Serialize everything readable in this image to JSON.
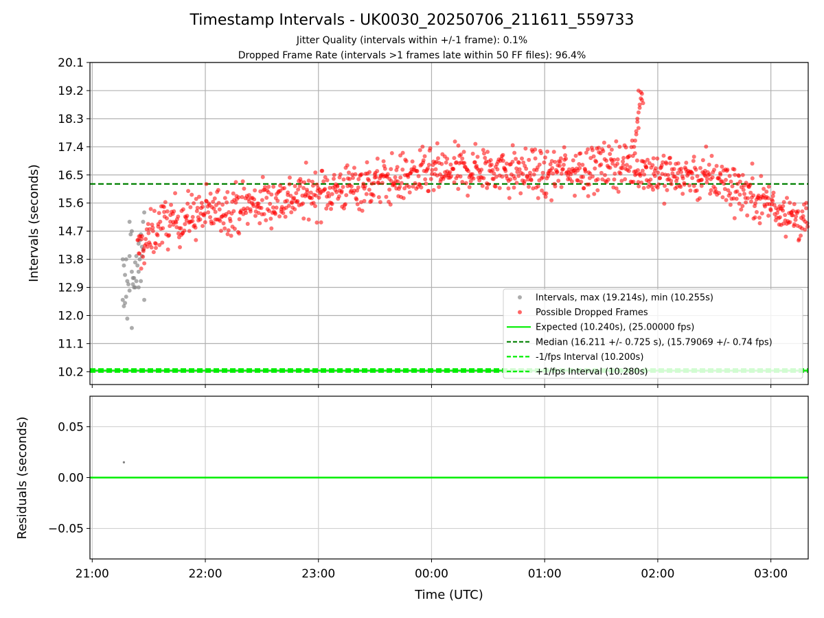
{
  "chart_data": [
    {
      "type": "scatter",
      "title": "Timestamp Intervals - UK0030_20250706_211611_559733",
      "subtitle_lines": [
        "Jitter Quality (intervals within +/-1 frame): 0.1%",
        "Dropped Frame Rate (intervals >1 frames late within 50 FF files): 96.4%"
      ],
      "xlabel": "",
      "ylabel": "Intervals (seconds)",
      "x_range_hours": [
        20.98,
        27.33
      ],
      "ylim": [
        9.79,
        20.1
      ],
      "yticks": [
        10.2,
        11.1,
        12.0,
        12.9,
        13.8,
        14.7,
        15.6,
        16.5,
        17.4,
        18.3,
        19.2,
        20.1
      ],
      "ytick_labels": [
        "10.2",
        "11.1",
        "12.0",
        "12.9",
        "13.8",
        "14.7",
        "15.6",
        "16.5",
        "17.4",
        "18.3",
        "19.2",
        "20.1"
      ],
      "xticks_hours": [
        21,
        22,
        23,
        24,
        25,
        26,
        27
      ],
      "grid": true,
      "legend_position": "lower-right",
      "expected": 10.24,
      "median": 16.211,
      "minus_interval": 10.2,
      "plus_interval": 10.28,
      "colors": {
        "intervals": "#808080",
        "dropped": "#ff0000",
        "expected": "#00ee00",
        "median": "#008000",
        "bounds": "#00ee00"
      },
      "legend": [
        {
          "key": "intervals",
          "label": "Intervals, max (19.214s), min (10.255s)"
        },
        {
          "key": "dropped",
          "label": "Possible Dropped Frames"
        },
        {
          "key": "expected",
          "label": "Expected (10.240s), (25.00000 fps)"
        },
        {
          "key": "median",
          "label": "Median (16.211 +/- 0.725 s), (15.79069 +/- 0.74 fps)"
        },
        {
          "key": "minus",
          "label": "-1/fps Interval (10.200s)"
        },
        {
          "key": "plus",
          "label": "+1/fps Interval (10.280s)"
        }
      ],
      "gray_points": [
        [
          21.27,
          13.8
        ],
        [
          21.28,
          13.6
        ],
        [
          21.29,
          13.3
        ],
        [
          21.27,
          12.5
        ],
        [
          21.28,
          12.3
        ],
        [
          21.3,
          12.6
        ],
        [
          21.31,
          13.1
        ],
        [
          21.32,
          13.0
        ],
        [
          21.33,
          12.8
        ],
        [
          21.3,
          13.8
        ],
        [
          21.33,
          13.9
        ],
        [
          21.35,
          13.4
        ],
        [
          21.36,
          13.2
        ],
        [
          21.37,
          12.9
        ],
        [
          21.38,
          13.7
        ],
        [
          21.34,
          14.6
        ],
        [
          21.35,
          14.7
        ],
        [
          21.33,
          15.0
        ],
        [
          21.39,
          13.9
        ],
        [
          21.4,
          13.6
        ],
        [
          21.41,
          14.3
        ],
        [
          21.42,
          14.4
        ],
        [
          21.43,
          14.6
        ],
        [
          21.44,
          14.2
        ],
        [
          21.45,
          15.0
        ],
        [
          21.46,
          15.3
        ],
        [
          21.42,
          13.8
        ],
        [
          21.44,
          13.9
        ],
        [
          21.38,
          12.9
        ],
        [
          21.36,
          13.0
        ],
        [
          21.31,
          11.9
        ],
        [
          21.41,
          12.9
        ],
        [
          21.43,
          13.1
        ],
        [
          21.46,
          12.5
        ],
        [
          21.41,
          13.4
        ],
        [
          21.29,
          12.4
        ],
        [
          21.35,
          11.6
        ],
        [
          21.39,
          13.1
        ],
        [
          21.45,
          14.1
        ],
        [
          21.37,
          13.2
        ]
      ],
      "dropped_series": {
        "description": "Possible dropped frames: interval values trend rising from ~14.0s near 21:30 UTC to ~17s near 01:30 UTC, spike to 19.2s near 01:50, then fall to ~14.5s near 03:20",
        "x_start_hours": 21.4,
        "x_end_hours": 27.33,
        "trend_hours": [
          21.4,
          21.6,
          22.0,
          22.5,
          23.0,
          23.5,
          24.0,
          24.5,
          25.0,
          25.5,
          25.75,
          26.0,
          26.5,
          27.0,
          27.33
        ],
        "trend_values": [
          14.0,
          14.9,
          15.3,
          15.6,
          15.95,
          16.25,
          16.55,
          16.7,
          16.5,
          16.9,
          16.85,
          16.55,
          16.4,
          15.6,
          14.9
        ],
        "spread": 0.55,
        "count": 1150,
        "spike_points": [
          [
            25.8,
            17.6
          ],
          [
            25.81,
            17.9
          ],
          [
            25.82,
            18.2
          ],
          [
            25.83,
            18.5
          ],
          [
            25.84,
            18.75
          ],
          [
            25.85,
            18.95
          ],
          [
            25.86,
            19.1
          ],
          [
            25.83,
            19.2
          ],
          [
            25.85,
            19.15
          ],
          [
            25.82,
            18.3
          ],
          [
            25.84,
            18.65
          ],
          [
            25.86,
            18.9
          ],
          [
            25.81,
            17.8
          ],
          [
            25.79,
            17.4
          ],
          [
            25.87,
            18.8
          ],
          [
            25.83,
            18.0
          ]
        ]
      }
    },
    {
      "type": "line",
      "xlabel": "Time (UTC)",
      "ylabel": "Residuals (seconds)",
      "ylim": [
        -0.08,
        0.08
      ],
      "yticks": [
        -0.05,
        0.0,
        0.05
      ],
      "ytick_labels": [
        "−0.05",
        "0.00",
        "0.05"
      ],
      "xticks_hours": [
        21,
        22,
        23,
        24,
        25,
        26,
        27
      ],
      "xtick_labels": [
        "21:00",
        "22:00",
        "23:00",
        "00:00",
        "01:00",
        "02:00",
        "03:00"
      ],
      "zero_line": 0.0,
      "points": [
        [
          21.28,
          0.015
        ]
      ],
      "colors": {
        "zero": "#00ee00",
        "point": "#808080"
      }
    }
  ]
}
